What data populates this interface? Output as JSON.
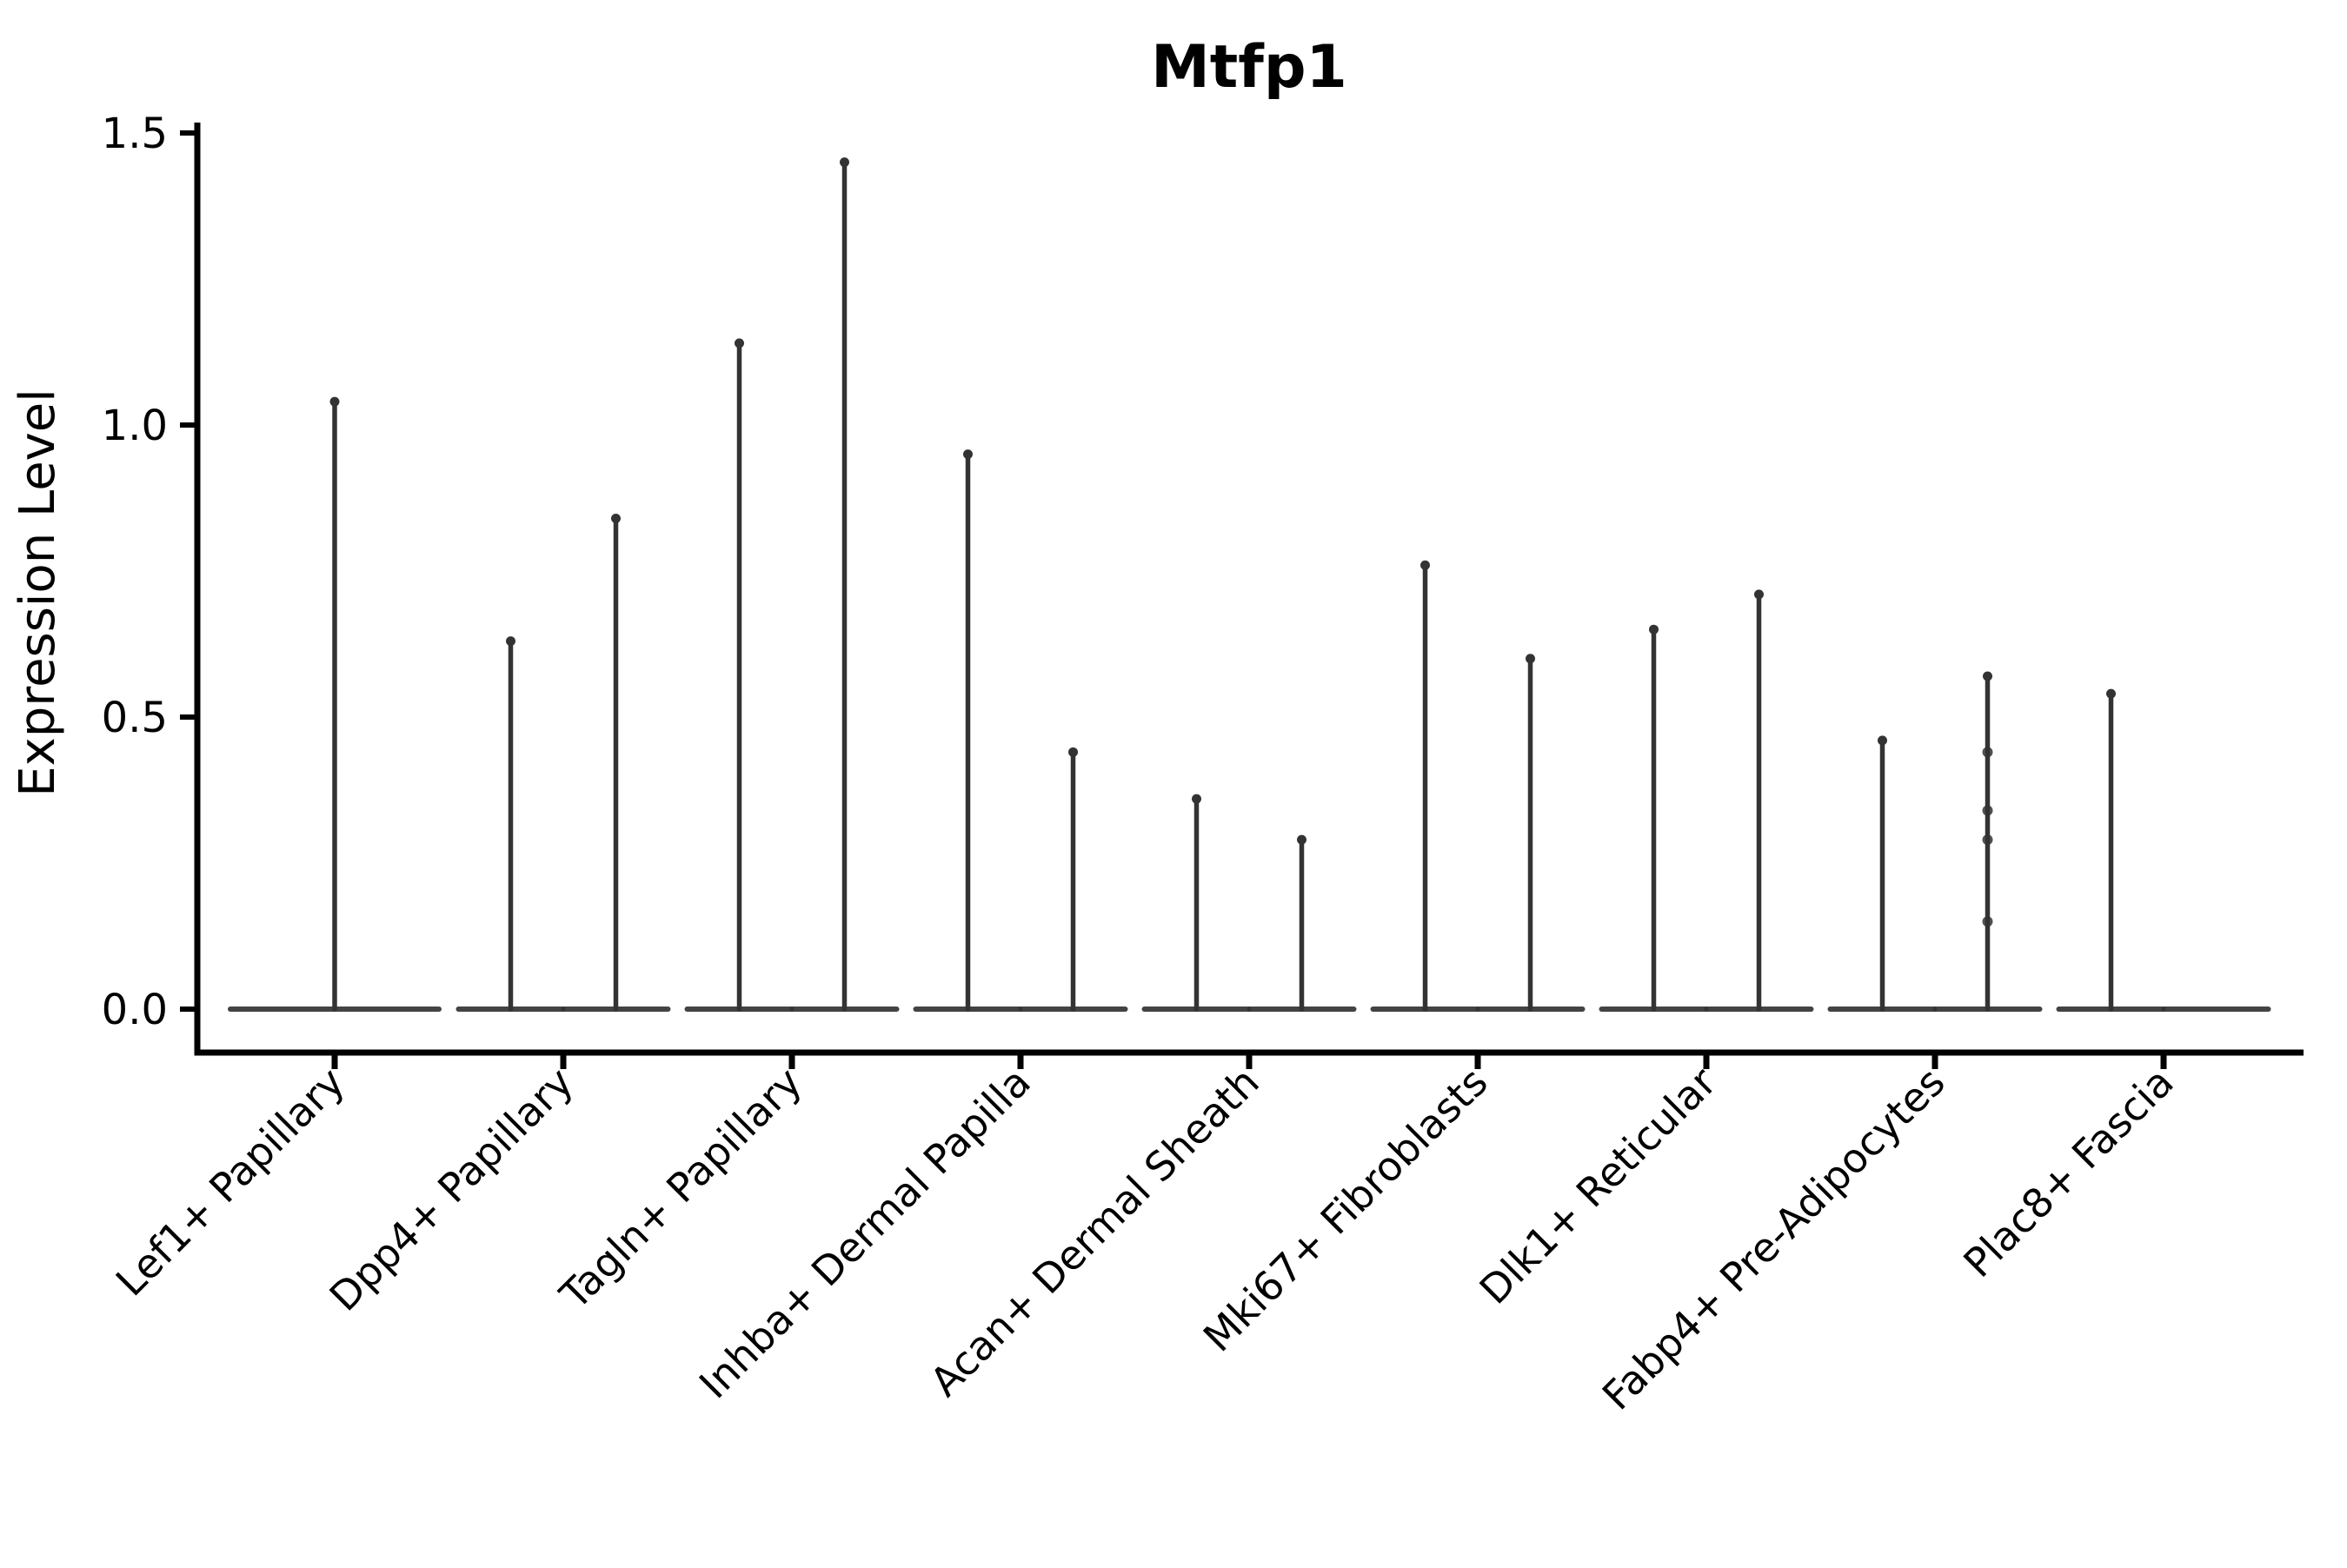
{
  "chart_data": {
    "type": "violin",
    "title": "Mtfp1",
    "ylabel": "Expression Level",
    "xlabel": "",
    "ylim": [
      0,
      1.5
    ],
    "ytick_labels": [
      "0.0",
      "0.5",
      "1.0",
      "1.5"
    ],
    "ytick_values": [
      0,
      0.5,
      1.0,
      1.5
    ],
    "grid": false,
    "legend": "none",
    "background_color": "#ffffff",
    "violin_color": "#333333",
    "axis_color": "#000000",
    "categories": [
      "Lef1+ Papillary",
      "Dpp4+ Papillary",
      "Tagln+ Papillary",
      "Inhba+ Dermal Papilla",
      "Acan+ Dermal Sheath",
      "Mki67+ Fibroblasts",
      "Dlk1+ Reticular",
      "Fabp4+ Pre-Adipocytes",
      "Plac8+ Fascia"
    ],
    "series": [
      {
        "category": "Lef1+ Papillary",
        "violins": [
          {
            "slot": "full",
            "max": 1.04
          }
        ]
      },
      {
        "category": "Dpp4+ Papillary",
        "violins": [
          {
            "slot": "left",
            "max": 0.63
          },
          {
            "slot": "right",
            "max": 0.84
          }
        ]
      },
      {
        "category": "Tagln+ Papillary",
        "violins": [
          {
            "slot": "left",
            "max": 1.14
          },
          {
            "slot": "right",
            "max": 1.45
          }
        ]
      },
      {
        "category": "Inhba+ Dermal Papilla",
        "violins": [
          {
            "slot": "left",
            "max": 0.95
          },
          {
            "slot": "right",
            "max": 0.44
          }
        ]
      },
      {
        "category": "Acan+ Dermal Sheath",
        "violins": [
          {
            "slot": "left",
            "max": 0.36
          },
          {
            "slot": "right",
            "max": 0.29
          }
        ]
      },
      {
        "category": "Mki67+ Fibroblasts",
        "violins": [
          {
            "slot": "left",
            "max": 0.76
          },
          {
            "slot": "right",
            "max": 0.6
          }
        ]
      },
      {
        "category": "Dlk1+ Reticular",
        "violins": [
          {
            "slot": "left",
            "max": 0.65
          },
          {
            "slot": "right",
            "max": 0.71
          }
        ]
      },
      {
        "category": "Fabp4+ Pre-Adipocytes",
        "violins": [
          {
            "slot": "left",
            "max": 0.46
          },
          {
            "slot": "right",
            "max": 0.57,
            "points": [
              0.44,
              0.34,
              0.29,
              0.15
            ]
          }
        ]
      },
      {
        "category": "Plac8+ Fascia",
        "violins": [
          {
            "slot": "left",
            "max": 0.54
          },
          {
            "slot": "right",
            "max": 0
          }
        ]
      }
    ]
  }
}
